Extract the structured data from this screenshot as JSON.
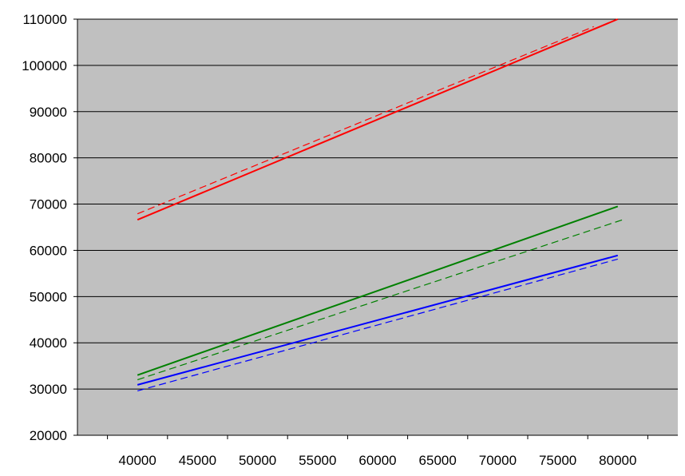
{
  "chart_data": {
    "type": "line",
    "title": "",
    "xlabel": "",
    "ylabel": "",
    "xlim": [
      35000,
      85000
    ],
    "ylim": [
      20000,
      110000
    ],
    "x_ticks": [
      40000,
      45000,
      50000,
      55000,
      60000,
      65000,
      70000,
      75000,
      80000
    ],
    "y_ticks": [
      20000,
      30000,
      40000,
      50000,
      60000,
      70000,
      80000,
      90000,
      100000,
      110000
    ],
    "grid": "horizontal",
    "legend": "none",
    "plot_background": "#c0c0c0",
    "series": [
      {
        "color": "#ff0000",
        "style": "solid",
        "x": [
          40000,
          80000
        ],
        "y": [
          66600,
          110000
        ]
      },
      {
        "color": "#ff0000",
        "style": "dashed",
        "x": [
          40000,
          78000
        ],
        "y": [
          67900,
          108400
        ]
      },
      {
        "color": "#008000",
        "style": "solid",
        "x": [
          40000,
          80000
        ],
        "y": [
          33000,
          69500
        ]
      },
      {
        "color": "#008000",
        "style": "dashed",
        "x": [
          40000,
          80500
        ],
        "y": [
          32000,
          66700
        ]
      },
      {
        "color": "#0000ff",
        "style": "solid",
        "x": [
          40000,
          80000
        ],
        "y": [
          30900,
          58900
        ]
      },
      {
        "color": "#0000ff",
        "style": "dashed",
        "x": [
          40000,
          80000
        ],
        "y": [
          29600,
          58100
        ]
      }
    ]
  }
}
